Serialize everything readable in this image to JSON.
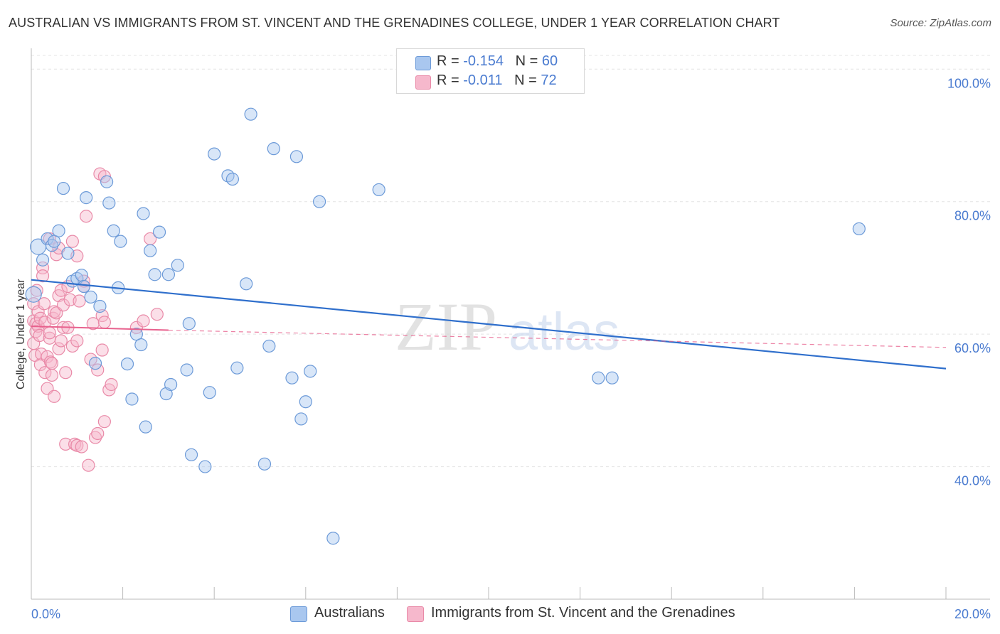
{
  "header": {
    "title": "AUSTRALIAN VS IMMIGRANTS FROM ST. VINCENT AND THE GRENADINES COLLEGE, UNDER 1 YEAR CORRELATION CHART",
    "source": "Source: ZipAtlas.com"
  },
  "legend": {
    "r_label": "R =",
    "n_label": "N =",
    "series": [
      {
        "r": "-0.154",
        "n": "60"
      },
      {
        "r": "-0.011",
        "n": "72"
      }
    ]
  },
  "watermark": {
    "zip": "ZIP",
    "atlas": "atlas"
  },
  "colors": {
    "blue_fill": "#a9c7ef",
    "blue_stroke": "#6c9ad8",
    "blue_line": "#2f6fcc",
    "pink_fill": "#f6b8cc",
    "pink_stroke": "#e98aa8",
    "pink_line": "#e8628e",
    "axis_text": "#4a7bd0",
    "grid": "#e4e4e4"
  },
  "chart_data": {
    "type": "scatter",
    "title": "AUSTRALIAN VS IMMIGRANTS FROM ST. VINCENT AND THE GRENADINES COLLEGE, UNDER 1 YEAR CORRELATION CHART",
    "xlabel": "",
    "ylabel": "College, Under 1 year",
    "xlim": [
      0,
      20
    ],
    "ylim": [
      20,
      104
    ],
    "x_tick_labels": {
      "min": "0.0%",
      "max": "20.0%"
    },
    "y_ticks": [
      {
        "value": 100,
        "label": "100.0%"
      },
      {
        "value": 80,
        "label": "80.0%"
      },
      {
        "value": 60,
        "label": "60.0%"
      },
      {
        "value": 40,
        "label": "40.0%"
      }
    ],
    "series": [
      {
        "name": "Australians",
        "trend": {
          "x": [
            0,
            20
          ],
          "y": [
            68.2,
            54.8
          ]
        },
        "points": [
          [
            0.05,
            66.0
          ],
          [
            0.15,
            73.2
          ],
          [
            0.25,
            71.2
          ],
          [
            0.35,
            74.4
          ],
          [
            0.45,
            73.4
          ],
          [
            0.5,
            74.0
          ],
          [
            0.6,
            75.6
          ],
          [
            0.7,
            82.0
          ],
          [
            0.8,
            72.2
          ],
          [
            0.9,
            68.0
          ],
          [
            1.0,
            68.4
          ],
          [
            1.1,
            68.9
          ],
          [
            1.15,
            67.2
          ],
          [
            1.2,
            80.6
          ],
          [
            1.3,
            65.6
          ],
          [
            1.4,
            55.6
          ],
          [
            1.5,
            64.2
          ],
          [
            1.65,
            83.0
          ],
          [
            1.7,
            79.8
          ],
          [
            1.8,
            75.6
          ],
          [
            1.9,
            67.0
          ],
          [
            1.95,
            74.0
          ],
          [
            2.1,
            55.5
          ],
          [
            2.2,
            50.2
          ],
          [
            2.3,
            60.0
          ],
          [
            2.4,
            58.4
          ],
          [
            2.45,
            78.2
          ],
          [
            2.5,
            46.0
          ],
          [
            2.6,
            72.6
          ],
          [
            2.7,
            69.0
          ],
          [
            2.8,
            75.4
          ],
          [
            2.95,
            51.0
          ],
          [
            3.0,
            69.0
          ],
          [
            3.05,
            52.4
          ],
          [
            3.2,
            70.4
          ],
          [
            3.4,
            54.6
          ],
          [
            3.45,
            61.6
          ],
          [
            3.5,
            41.8
          ],
          [
            3.8,
            40.0
          ],
          [
            3.9,
            51.2
          ],
          [
            4.0,
            87.2
          ],
          [
            4.3,
            83.9
          ],
          [
            4.4,
            83.4
          ],
          [
            4.5,
            54.9
          ],
          [
            4.7,
            67.6
          ],
          [
            4.8,
            93.2
          ],
          [
            5.2,
            58.2
          ],
          [
            5.3,
            88.0
          ],
          [
            5.1,
            40.4
          ],
          [
            5.7,
            53.4
          ],
          [
            5.8,
            86.8
          ],
          [
            5.9,
            47.2
          ],
          [
            6.0,
            49.8
          ],
          [
            6.1,
            54.4
          ],
          [
            6.3,
            80.0
          ],
          [
            6.6,
            29.2
          ],
          [
            7.6,
            81.8
          ],
          [
            12.4,
            53.4
          ],
          [
            12.7,
            53.4
          ],
          [
            18.1,
            75.9
          ]
        ]
      },
      {
        "name": "Immigrants from St. Vincent and the Grenadines",
        "trend": {
          "x": [
            0,
            3
          ],
          "y": [
            61.2,
            60.6
          ]
        },
        "trend_dashed": {
          "x": [
            3,
            20
          ],
          "y": [
            60.6,
            58.0
          ]
        },
        "points": [
          [
            0.05,
            64.6
          ],
          [
            0.05,
            62.0
          ],
          [
            0.05,
            58.6
          ],
          [
            0.08,
            56.8
          ],
          [
            0.1,
            61.6
          ],
          [
            0.1,
            60.4
          ],
          [
            0.12,
            66.6
          ],
          [
            0.15,
            63.4
          ],
          [
            0.15,
            61.2
          ],
          [
            0.18,
            59.8
          ],
          [
            0.2,
            62.4
          ],
          [
            0.2,
            55.4
          ],
          [
            0.22,
            57.0
          ],
          [
            0.25,
            70.0
          ],
          [
            0.25,
            68.8
          ],
          [
            0.28,
            64.6
          ],
          [
            0.3,
            61.8
          ],
          [
            0.3,
            54.2
          ],
          [
            0.35,
            56.6
          ],
          [
            0.35,
            51.8
          ],
          [
            0.4,
            59.4
          ],
          [
            0.4,
            74.4
          ],
          [
            0.4,
            60.2
          ],
          [
            0.42,
            55.8
          ],
          [
            0.45,
            53.8
          ],
          [
            0.45,
            55.6
          ],
          [
            0.48,
            62.4
          ],
          [
            0.5,
            50.6
          ],
          [
            0.5,
            63.4
          ],
          [
            0.55,
            63.2
          ],
          [
            0.55,
            72.0
          ],
          [
            0.6,
            65.8
          ],
          [
            0.6,
            57.8
          ],
          [
            0.6,
            73.0
          ],
          [
            0.65,
            66.6
          ],
          [
            0.65,
            59.0
          ],
          [
            0.7,
            61.0
          ],
          [
            0.7,
            64.4
          ],
          [
            0.75,
            54.2
          ],
          [
            0.75,
            43.4
          ],
          [
            0.8,
            61.0
          ],
          [
            0.8,
            67.2
          ],
          [
            0.85,
            65.2
          ],
          [
            0.9,
            58.2
          ],
          [
            0.9,
            74.0
          ],
          [
            0.95,
            43.4
          ],
          [
            1.0,
            71.8
          ],
          [
            1.0,
            43.2
          ],
          [
            1.0,
            59.0
          ],
          [
            1.05,
            65.0
          ],
          [
            1.1,
            43.0
          ],
          [
            1.15,
            67.2
          ],
          [
            1.2,
            77.8
          ],
          [
            1.25,
            40.2
          ],
          [
            1.3,
            56.2
          ],
          [
            1.35,
            61.6
          ],
          [
            1.4,
            44.4
          ],
          [
            1.45,
            45.0
          ],
          [
            1.45,
            54.6
          ],
          [
            1.5,
            84.2
          ],
          [
            1.55,
            57.6
          ],
          [
            1.55,
            62.8
          ],
          [
            1.6,
            46.8
          ],
          [
            1.6,
            61.8
          ],
          [
            1.6,
            83.8
          ],
          [
            1.7,
            51.6
          ],
          [
            1.75,
            52.4
          ],
          [
            2.3,
            61.0
          ],
          [
            2.45,
            62.0
          ],
          [
            2.6,
            74.4
          ],
          [
            2.75,
            63.0
          ],
          [
            1.15,
            68.0
          ]
        ]
      }
    ]
  }
}
